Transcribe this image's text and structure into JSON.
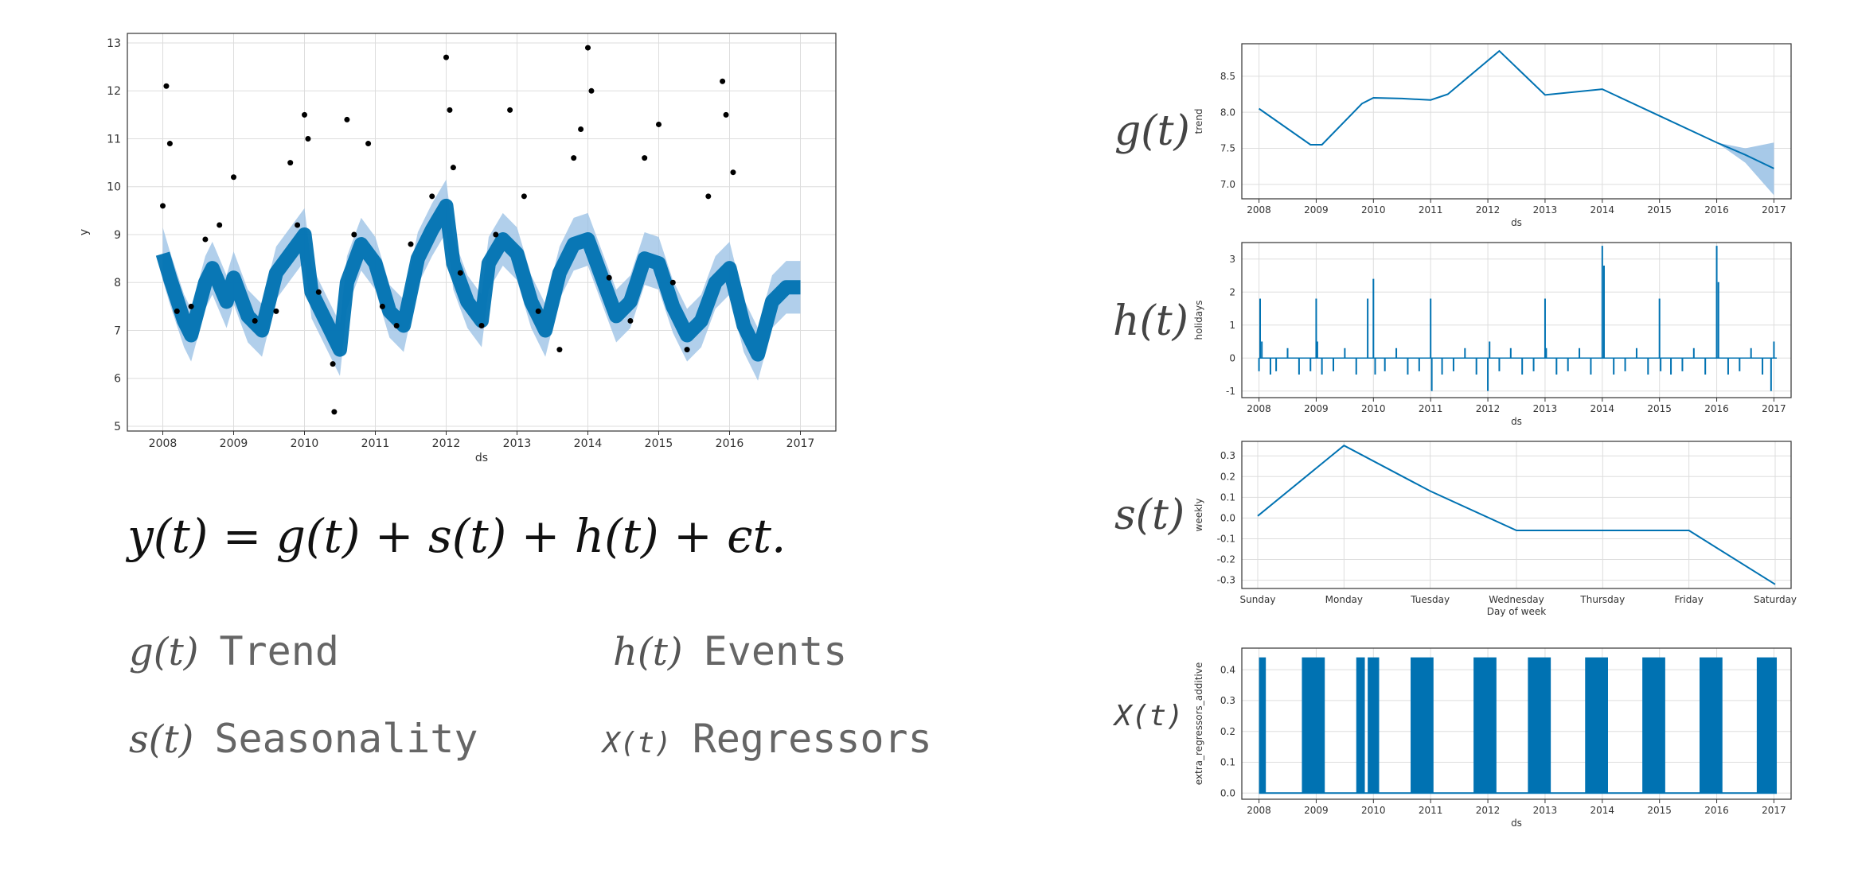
{
  "formula": "y(t) = g(t) + s(t) + h(t) + ϵt.",
  "legend": [
    {
      "symbol": "g(t)",
      "label": "Trend"
    },
    {
      "symbol": "h(t)",
      "label": "Events"
    },
    {
      "symbol": "s(t)",
      "label": "Seasonality"
    },
    {
      "symbol": "X(t)",
      "label": "Regressors"
    }
  ],
  "side_labels": {
    "trend": "g(t)",
    "holidays": "h(t)",
    "weekly": "s(t)",
    "regressors": "X(t)"
  },
  "colors": {
    "line": "#0072B2",
    "band": "#9DC3E6",
    "points": "#000000",
    "grid": "#DDDDDD"
  },
  "chart_data": [
    {
      "id": "forecast",
      "type": "scatter",
      "xlabel": "ds",
      "ylabel": "y",
      "xlim": [
        2007.5,
        2017.5
      ],
      "ylim": [
        4.9,
        13.2
      ],
      "xticks": [
        "2008",
        "2009",
        "2010",
        "2011",
        "2012",
        "2013",
        "2014",
        "2015",
        "2016",
        "2017"
      ],
      "yticks": [
        5,
        6,
        7,
        8,
        9,
        10,
        11,
        12,
        13
      ],
      "grid": true,
      "series": [
        {
          "kind": "forecast_line",
          "x": [
            2008.0,
            2008.1,
            2008.3,
            2008.4,
            2008.6,
            2008.7,
            2008.9,
            2009.0,
            2009.2,
            2009.4,
            2009.6,
            2009.8,
            2010.0,
            2010.1,
            2010.3,
            2010.5,
            2010.6,
            2010.8,
            2011.0,
            2011.2,
            2011.4,
            2011.6,
            2011.8,
            2012.0,
            2012.1,
            2012.3,
            2012.5,
            2012.6,
            2012.8,
            2013.0,
            2013.2,
            2013.4,
            2013.6,
            2013.8,
            2014.0,
            2014.2,
            2014.4,
            2014.6,
            2014.8,
            2015.0,
            2015.2,
            2015.4,
            2015.6,
            2015.8,
            2016.0,
            2016.2,
            2016.4,
            2016.6,
            2016.8,
            2017.0
          ],
          "y": [
            8.6,
            8.1,
            7.2,
            6.9,
            8.0,
            8.3,
            7.6,
            8.1,
            7.3,
            7.0,
            8.2,
            8.6,
            9.0,
            7.8,
            7.2,
            6.6,
            8.0,
            8.8,
            8.4,
            7.4,
            7.1,
            8.5,
            9.1,
            9.6,
            8.4,
            7.6,
            7.2,
            8.4,
            8.9,
            8.6,
            7.6,
            7.0,
            8.2,
            8.8,
            8.9,
            8.1,
            7.3,
            7.6,
            8.5,
            8.4,
            7.5,
            6.9,
            7.2,
            8.0,
            8.3,
            7.1,
            6.5,
            7.6,
            7.9,
            7.9
          ]
        },
        {
          "kind": "band_halfwidth",
          "value": 0.55
        },
        {
          "kind": "observed_points",
          "x": [
            2008.0,
            2008.05,
            2008.1,
            2008.2,
            2008.4,
            2008.6,
            2008.8,
            2009.0,
            2009.3,
            2009.6,
            2009.8,
            2009.9,
            2010.0,
            2010.05,
            2010.2,
            2010.4,
            2010.42,
            2010.6,
            2010.7,
            2010.9,
            2011.1,
            2011.3,
            2011.5,
            2011.8,
            2012.0,
            2012.05,
            2012.1,
            2012.2,
            2012.5,
            2012.7,
            2012.9,
            2013.1,
            2013.3,
            2013.6,
            2013.8,
            2013.9,
            2014.0,
            2014.05,
            2014.3,
            2014.6,
            2014.8,
            2015.0,
            2015.2,
            2015.4,
            2015.7,
            2015.9,
            2015.95,
            2016.05
          ],
          "y": [
            9.6,
            12.1,
            10.9,
            7.4,
            7.5,
            8.9,
            9.2,
            10.2,
            7.2,
            7.4,
            10.5,
            9.2,
            11.5,
            11.0,
            7.8,
            6.3,
            5.3,
            11.4,
            9.0,
            10.9,
            7.5,
            7.1,
            8.8,
            9.8,
            12.7,
            11.6,
            10.4,
            8.2,
            7.1,
            9.0,
            11.6,
            9.8,
            7.4,
            6.6,
            10.6,
            11.2,
            12.9,
            12.0,
            8.1,
            7.2,
            10.6,
            11.3,
            8.0,
            6.6,
            9.8,
            12.2,
            11.5,
            10.3
          ]
        }
      ]
    },
    {
      "id": "trend",
      "type": "line",
      "xlabel": "ds",
      "ylabel": "trend",
      "xlim": [
        2007.7,
        2017.3
      ],
      "ylim": [
        6.8,
        8.95
      ],
      "xticks": [
        "2008",
        "2009",
        "2010",
        "2011",
        "2012",
        "2013",
        "2014",
        "2015",
        "2016",
        "2017"
      ],
      "yticks": [
        "7.0",
        "7.5",
        "8.0",
        "8.5"
      ],
      "grid": true,
      "x": [
        2008.0,
        2008.9,
        2009.1,
        2009.8,
        2010.0,
        2010.5,
        2011.0,
        2011.3,
        2012.2,
        2013.0,
        2014.0,
        2015.0,
        2016.0,
        2016.5,
        2017.0
      ],
      "y": [
        8.05,
        7.55,
        7.55,
        8.12,
        8.2,
        8.19,
        8.17,
        8.25,
        8.85,
        8.24,
        8.32,
        7.95,
        7.58,
        7.41,
        7.22
      ],
      "band": {
        "x": [
          2016.0,
          2016.5,
          2017.0
        ],
        "upper": [
          7.58,
          7.5,
          7.58
        ],
        "lower": [
          7.58,
          7.3,
          6.85
        ]
      }
    },
    {
      "id": "holidays",
      "type": "bar",
      "xlabel": "ds",
      "ylabel": "holidays",
      "xlim": [
        2007.7,
        2017.3
      ],
      "ylim": [
        -1.2,
        3.5
      ],
      "xticks": [
        "2008",
        "2009",
        "2010",
        "2011",
        "2012",
        "2013",
        "2014",
        "2015",
        "2016",
        "2017"
      ],
      "yticks": [
        "-1",
        "0",
        "1",
        "2",
        "3"
      ],
      "grid": true,
      "x": [
        2008.0,
        2008.02,
        2008.05,
        2008.2,
        2008.3,
        2008.5,
        2008.7,
        2008.9,
        2009.0,
        2009.02,
        2009.1,
        2009.3,
        2009.5,
        2009.7,
        2009.9,
        2010.0,
        2010.03,
        2010.2,
        2010.4,
        2010.6,
        2010.8,
        2011.0,
        2011.02,
        2011.2,
        2011.4,
        2011.6,
        2011.8,
        2012.0,
        2012.03,
        2012.2,
        2012.4,
        2012.6,
        2012.8,
        2013.0,
        2013.02,
        2013.2,
        2013.4,
        2013.6,
        2013.8,
        2014.0,
        2014.03,
        2014.2,
        2014.4,
        2014.6,
        2014.8,
        2015.0,
        2015.02,
        2015.2,
        2015.4,
        2015.6,
        2015.8,
        2016.0,
        2016.03,
        2016.2,
        2016.4,
        2016.6,
        2016.8,
        2016.95,
        2017.0
      ],
      "values": [
        -0.4,
        1.8,
        0.5,
        -0.5,
        -0.4,
        0.3,
        -0.5,
        -0.4,
        1.8,
        0.5,
        -0.5,
        -0.4,
        0.3,
        -0.5,
        1.8,
        2.4,
        -0.5,
        -0.4,
        0.3,
        -0.5,
        -0.4,
        1.8,
        -1.0,
        -0.5,
        -0.4,
        0.3,
        -0.5,
        -1.0,
        0.5,
        -0.4,
        0.3,
        -0.5,
        -0.4,
        1.8,
        0.3,
        -0.5,
        -0.4,
        0.3,
        -0.5,
        3.4,
        2.8,
        -0.5,
        -0.4,
        0.3,
        -0.5,
        1.8,
        -0.4,
        -0.5,
        -0.4,
        0.3,
        -0.5,
        3.4,
        2.3,
        -0.5,
        -0.4,
        0.3,
        -0.5,
        -1.0,
        0.5
      ]
    },
    {
      "id": "weekly",
      "type": "line",
      "xlabel": "Day of week",
      "ylabel": "weekly",
      "categories": [
        "Sunday",
        "Monday",
        "Tuesday",
        "Wednesday",
        "Thursday",
        "Friday",
        "Saturday"
      ],
      "values": [
        0.01,
        0.35,
        0.13,
        -0.06,
        -0.06,
        -0.06,
        -0.32
      ],
      "ylim": [
        -0.34,
        0.37
      ],
      "yticks": [
        "0.3",
        "0.2",
        "0.1",
        "0.0",
        "-0.1",
        "-0.2",
        "-0.3"
      ],
      "grid": true
    },
    {
      "id": "regressors",
      "type": "area",
      "xlabel": "ds",
      "ylabel": "extra_regressors_additive",
      "xlim": [
        2007.7,
        2017.3
      ],
      "ylim": [
        -0.02,
        0.47
      ],
      "xticks": [
        "2008",
        "2009",
        "2010",
        "2011",
        "2012",
        "2013",
        "2014",
        "2015",
        "2016",
        "2017"
      ],
      "yticks": [
        "0.0",
        "0.1",
        "0.2",
        "0.3",
        "0.4"
      ],
      "grid": true,
      "on_value": 0.44,
      "off_value": 0.0,
      "on_periods": [
        [
          2008.0,
          2008.12
        ],
        [
          2008.75,
          2009.15
        ],
        [
          2009.7,
          2009.85
        ],
        [
          2009.9,
          2010.1
        ],
        [
          2010.65,
          2011.05
        ],
        [
          2011.75,
          2012.15
        ],
        [
          2012.7,
          2013.1
        ],
        [
          2013.7,
          2014.1
        ],
        [
          2014.7,
          2015.1
        ],
        [
          2015.7,
          2016.1
        ],
        [
          2016.7,
          2017.05
        ]
      ]
    }
  ]
}
